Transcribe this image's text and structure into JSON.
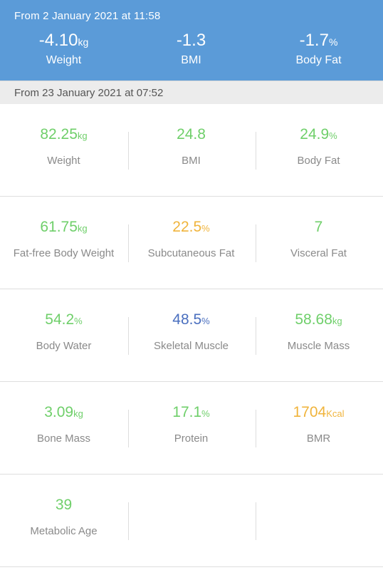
{
  "colors": {
    "header_bg": "#5b9bd8",
    "normal": "#6fcf6a",
    "high": "#f0b43c",
    "low": "#4a6fbf",
    "label": "#8a8a8a"
  },
  "summary": {
    "since": "From 2 January 2021 at 11:58",
    "items": [
      {
        "value": "-4.10",
        "unit": "kg",
        "label": "Weight"
      },
      {
        "value": "-1.3",
        "unit": "",
        "label": "BMI"
      },
      {
        "value": "-1.7",
        "unit": "%",
        "label": "Body Fat"
      }
    ]
  },
  "measurement": {
    "since": "From 23 January 2021 at 07:52"
  },
  "metrics": [
    {
      "value": "82.25",
      "unit": "kg",
      "label": "Weight",
      "status": "normal"
    },
    {
      "value": "24.8",
      "unit": "",
      "label": "BMI",
      "status": "normal"
    },
    {
      "value": "24.9",
      "unit": "%",
      "label": "Body Fat",
      "status": "normal"
    },
    {
      "value": "61.75",
      "unit": "kg",
      "label": "Fat-free Body Weight",
      "status": "normal"
    },
    {
      "value": "22.5",
      "unit": "%",
      "label": "Subcutaneous Fat",
      "status": "high"
    },
    {
      "value": "7",
      "unit": "",
      "label": "Visceral Fat",
      "status": "normal"
    },
    {
      "value": "54.2",
      "unit": "%",
      "label": "Body Water",
      "status": "normal"
    },
    {
      "value": "48.5",
      "unit": "%",
      "label": "Skeletal Muscle",
      "status": "low"
    },
    {
      "value": "58.68",
      "unit": "kg",
      "label": "Muscle Mass",
      "status": "normal"
    },
    {
      "value": "3.09",
      "unit": "kg",
      "label": "Bone Mass",
      "status": "normal"
    },
    {
      "value": "17.1",
      "unit": "%",
      "label": "Protein",
      "status": "normal"
    },
    {
      "value": "1704",
      "unit": "Kcal",
      "label": "BMR",
      "status": "high"
    },
    {
      "value": "39",
      "unit": "",
      "label": "Metabolic Age",
      "status": "normal"
    }
  ]
}
